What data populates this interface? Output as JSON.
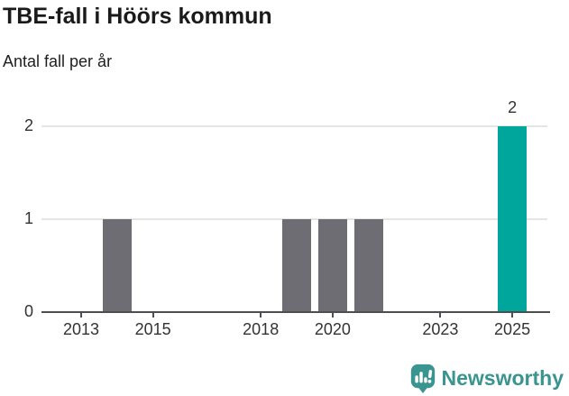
{
  "header": {
    "title": "TBE-fall i Höörs kommun",
    "subtitle": "Antal fall per år"
  },
  "chart_data": {
    "type": "bar",
    "title": "TBE-fall i Höörs kommun",
    "subtitle": "Antal fall per år",
    "x": [
      2014,
      2019,
      2020,
      2021,
      2025
    ],
    "values": [
      1,
      1,
      1,
      1,
      2
    ],
    "highlight_x": 2025,
    "value_labels": [
      {
        "x": 2025,
        "text": "2"
      }
    ],
    "xticks": [
      2013,
      2015,
      2018,
      2020,
      2023,
      2025
    ],
    "yticks": [
      0,
      1,
      2
    ],
    "xlim": [
      2011.9,
      2026.2
    ],
    "ylim": [
      0,
      2
    ],
    "grid": "horizontal-only",
    "legend": "none",
    "colors": {
      "bar_default": "#6e6d73",
      "bar_highlight": "#00a69c",
      "gridline": "#e5e5e5",
      "axis": "#4d4d52",
      "tick_label": "#333333"
    }
  },
  "branding": {
    "name": "Newsworthy",
    "logo_icon": "bar-chart-speech-bubble-icon",
    "color": "#3a948f"
  }
}
